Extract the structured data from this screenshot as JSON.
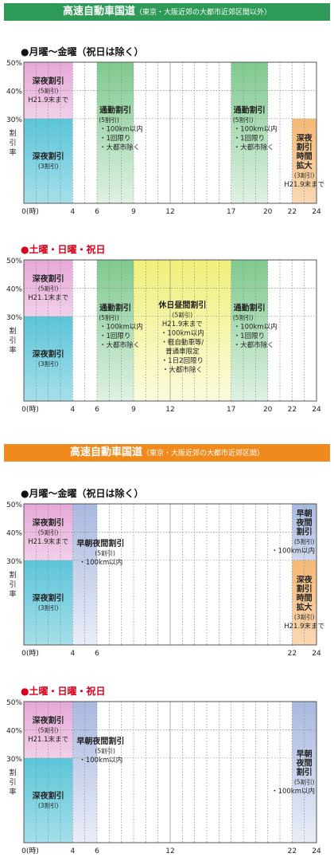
{
  "sections": [
    {
      "title": "高速自動車国道",
      "subtitle": "（東京・大阪近郊の大都市近郊区間以外）",
      "color": "#2e9a57"
    },
    {
      "title": "高速自動車国道",
      "subtitle": "（東京・大阪近郊の大都市近郊区間）",
      "color": "#f08a1c"
    }
  ],
  "chart_data": [
    {
      "type": "area",
      "title": "●月曜～金曜（祝日は除く）",
      "title_color": "#111111",
      "ylabel": "割引率",
      "ylim": [
        0,
        50
      ],
      "ytick_labels": [
        "50%",
        "40%",
        "30%"
      ],
      "xlim": [
        0,
        24
      ],
      "x_ticks": [
        0,
        4,
        6,
        9,
        12,
        17,
        20,
        22,
        24
      ],
      "x_tick_labels": [
        "0(時)",
        "4",
        "6",
        "9",
        "12",
        "17",
        "20",
        "22",
        "24"
      ],
      "series": [
        {
          "name": "深夜割引",
          "sub": "(3割引)",
          "x": [
            0,
            4
          ],
          "value": 30,
          "color": "#5bc5d9",
          "lines": [
            "深夜割引",
            "(3割引)"
          ],
          "align": "center"
        },
        {
          "name": "深夜割引",
          "sub": "(5割引)",
          "x": [
            0,
            4
          ],
          "range": [
            30,
            50
          ],
          "value": 50,
          "color": "#e6a8d7",
          "lines": [
            "深夜割引",
            "(5割引)",
            "H21.9末まで"
          ],
          "align": "center"
        },
        {
          "name": "通勤割引",
          "sub": "(5割引)",
          "x": [
            6,
            9
          ],
          "value": 50,
          "color": "#7fc98e",
          "lines": [
            "通勤割引",
            "(5割引)",
            "・100km以内",
            "・1回限り",
            "・大都市除く"
          ],
          "align": "left"
        },
        {
          "name": "通勤割引",
          "sub": "(5割引)",
          "x": [
            17,
            20
          ],
          "value": 50,
          "color": "#7fc98e",
          "lines": [
            "通勤割引",
            "(5割引)",
            "・100km以内",
            "・1回限り",
            "・大都市除く"
          ],
          "align": "left"
        },
        {
          "name": "深夜割引時間拡大",
          "sub": "(3割引)",
          "x": [
            22,
            24
          ],
          "value": 30,
          "color": "#f5b876",
          "lines": [
            "深夜",
            "割引",
            "時間",
            "拡大",
            "(3割引)",
            "H21.9末まで"
          ],
          "align": "center"
        }
      ]
    },
    {
      "type": "area",
      "title": "●土曜・日曜・祝日",
      "title_color": "#d9001b",
      "ylabel": "割引率",
      "ylim": [
        0,
        50
      ],
      "ytick_labels": [
        "50%",
        "40%",
        "30%"
      ],
      "xlim": [
        0,
        24
      ],
      "x_ticks": [
        0,
        4,
        6,
        9,
        12,
        17,
        20,
        22,
        24
      ],
      "x_tick_labels": [
        "0(時)",
        "4",
        "6",
        "9",
        "12",
        "17",
        "20",
        "22",
        "24"
      ],
      "series": [
        {
          "name": "深夜割引",
          "sub": "(3割引)",
          "x": [
            0,
            4
          ],
          "value": 30,
          "color": "#5bc5d9",
          "lines": [
            "深夜割引",
            "(3割引)"
          ],
          "align": "center"
        },
        {
          "name": "深夜割引",
          "sub": "(5割引)",
          "x": [
            0,
            4
          ],
          "range": [
            30,
            50
          ],
          "value": 50,
          "color": "#e6a8d7",
          "lines": [
            "深夜割引",
            "(5割引)",
            "H21.1末まで"
          ],
          "align": "center"
        },
        {
          "name": "通勤割引",
          "sub": "(5割引)",
          "x": [
            6,
            9
          ],
          "value": 50,
          "color": "#7fc98e",
          "lines": [
            "通勤割引",
            "(5割引)",
            "・100km以内",
            "・1回限り",
            "・大都市除く"
          ],
          "align": "left"
        },
        {
          "name": "休日昼間割引",
          "sub": "(5割引)",
          "x": [
            9,
            17
          ],
          "value": 50,
          "color": "#f0f07a",
          "lines": [
            "休日昼間割引",
            "(5割引)",
            "H21.9末まで",
            "・100km以内",
            "・軽自動車等/",
            "普通車限定",
            "・1日2回限り",
            "・大都市除く"
          ],
          "align": "center"
        },
        {
          "name": "通勤割引",
          "sub": "(5割引)",
          "x": [
            17,
            20
          ],
          "value": 50,
          "color": "#7fc98e",
          "lines": [
            "通勤割引",
            "(5割引)",
            "・100km以内",
            "・1回限り",
            "・大都市除く"
          ],
          "align": "left"
        }
      ]
    },
    {
      "type": "area",
      "title": "●月曜～金曜（祝日は除く）",
      "title_color": "#111111",
      "ylabel": "割引率",
      "ylim": [
        0,
        50
      ],
      "ytick_labels": [
        "50%",
        "40%",
        "30%"
      ],
      "xlim": [
        0,
        24
      ],
      "x_ticks": [
        0,
        4,
        6,
        22,
        24
      ],
      "x_tick_labels": [
        "0(時)",
        "4",
        "6",
        "22",
        "24"
      ],
      "series": [
        {
          "name": "深夜割引",
          "sub": "(3割引)",
          "x": [
            0,
            4
          ],
          "value": 30,
          "color": "#5bc5d9",
          "lines": [
            "深夜割引",
            "(3割引)"
          ],
          "align": "center"
        },
        {
          "name": "深夜割引",
          "sub": "(5割引)",
          "x": [
            0,
            4
          ],
          "range": [
            30,
            50
          ],
          "value": 50,
          "color": "#e6a8d7",
          "lines": [
            "深夜割引",
            "(5割引)",
            "H21.9末まで"
          ],
          "align": "center"
        },
        {
          "name": "早朝夜間割引",
          "sub": "(5割引)",
          "x": [
            4,
            6
          ],
          "value": 50,
          "color": "#a8b8df",
          "lines": [
            "早朝夜間割引",
            "(5割引)",
            "・100km以内"
          ],
          "align": "label-right"
        },
        {
          "name": "早朝夜間割引",
          "sub": "(5割引)",
          "x": [
            22,
            24
          ],
          "range": [
            30,
            50
          ],
          "value": 50,
          "color": "#a8b8df",
          "lines": [
            "早朝",
            "夜間",
            "割引",
            "(5割引)",
            "・100km以内"
          ],
          "align": "center"
        },
        {
          "name": "深夜割引時間拡大",
          "sub": "(3割引)",
          "x": [
            22,
            24
          ],
          "value": 30,
          "color": "#f5b876",
          "lines": [
            "深夜",
            "割引",
            "時間",
            "拡大",
            "(3割引)",
            "H21.9末まで"
          ],
          "align": "center"
        }
      ]
    },
    {
      "type": "area",
      "title": "●土曜・日曜・祝日",
      "title_color": "#d9001b",
      "ylabel": "割引率",
      "ylim": [
        0,
        50
      ],
      "ytick_labels": [
        "50%",
        "40%",
        "30%"
      ],
      "xlim": [
        0,
        24
      ],
      "x_ticks": [
        0,
        4,
        6,
        12,
        22,
        24
      ],
      "x_tick_labels": [
        "0(時)",
        "4",
        "6",
        "12",
        "22",
        "24"
      ],
      "series": [
        {
          "name": "深夜割引",
          "sub": "(3割引)",
          "x": [
            0,
            4
          ],
          "value": 30,
          "color": "#5bc5d9",
          "lines": [
            "深夜割引",
            "(3割引)"
          ],
          "align": "center"
        },
        {
          "name": "深夜割引",
          "sub": "(5割引)",
          "x": [
            0,
            4
          ],
          "range": [
            30,
            50
          ],
          "value": 50,
          "color": "#e6a8d7",
          "lines": [
            "深夜割引",
            "(5割引)",
            "H21.1末まで"
          ],
          "align": "center"
        },
        {
          "name": "早朝夜間割引",
          "sub": "(5割引)",
          "x": [
            4,
            6
          ],
          "value": 50,
          "color": "#a8b8df",
          "lines": [
            "早朝夜間割引",
            "(5割引)",
            "・100km以内"
          ],
          "align": "label-right"
        },
        {
          "name": "早朝夜間割引",
          "sub": "(5割引)",
          "x": [
            22,
            24
          ],
          "value": 50,
          "color": "#a8b8df",
          "lines": [
            "早朝",
            "夜間",
            "割引",
            "(5割引)",
            "・100km以内"
          ],
          "align": "center"
        }
      ]
    }
  ]
}
